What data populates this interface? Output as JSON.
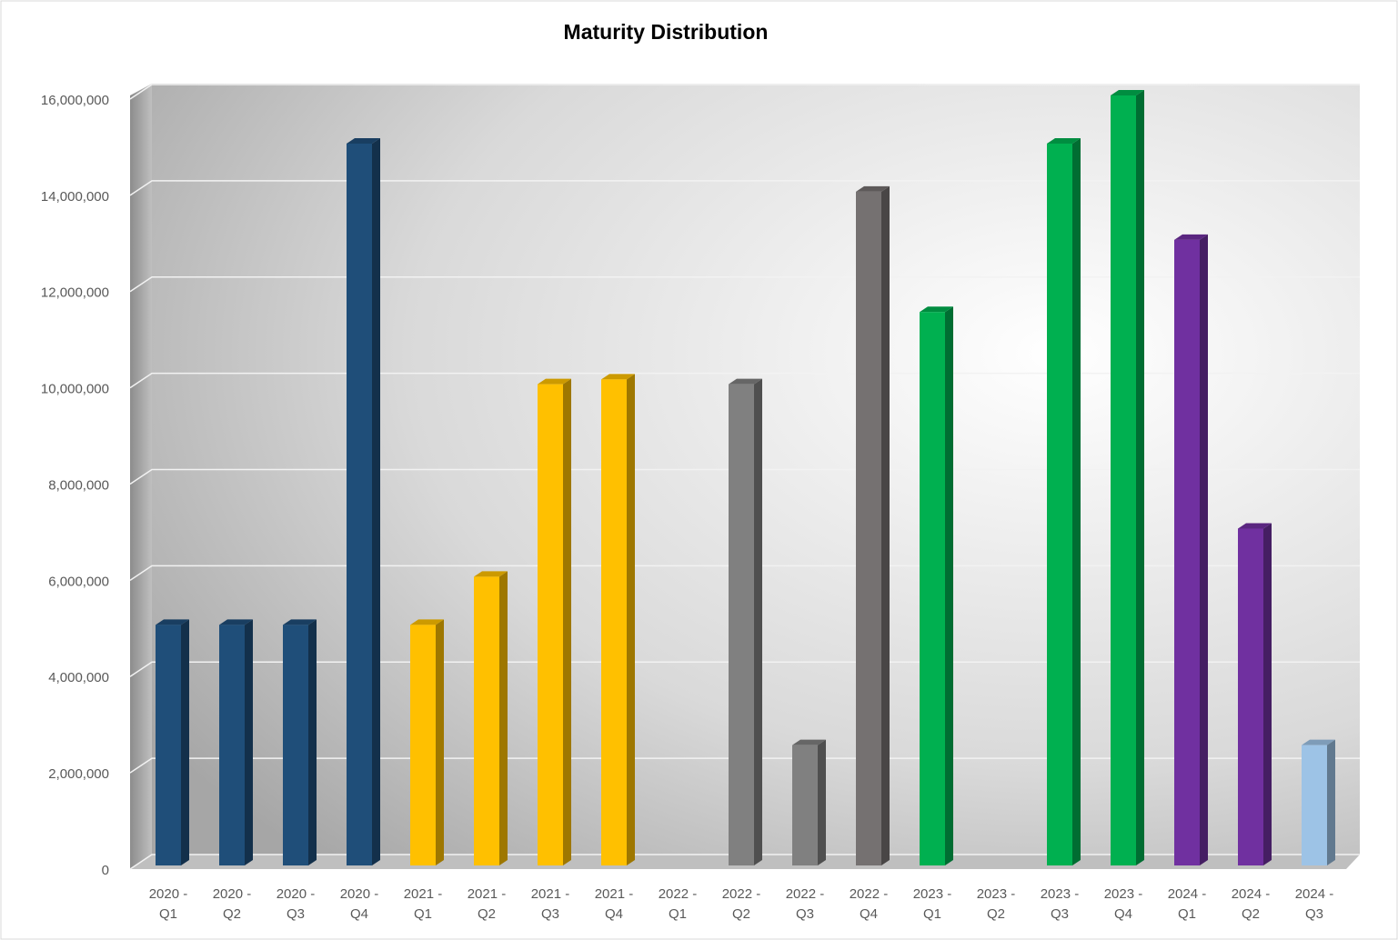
{
  "chart_data": {
    "type": "bar",
    "title": "Maturity Distribution",
    "categories": [
      "2020 - Q1",
      "2020 - Q2",
      "2020 - Q3",
      "2020 - Q4",
      "2021 - Q1",
      "2021 - Q2",
      "2021 - Q3",
      "2021 - Q4",
      "2022 - Q1",
      "2022 - Q2",
      "2022 - Q3",
      "2022 - Q4",
      "2023 - Q1",
      "2023 - Q2",
      "2023 - Q3",
      "2023 - Q4",
      "2024 - Q1",
      "2024 - Q2",
      "2024 - Q3"
    ],
    "values": [
      5000000,
      5000000,
      5000000,
      15000000,
      5000000,
      6000000,
      10000000,
      10100000,
      null,
      10000000,
      2500000,
      14000000,
      11500000,
      null,
      15000000,
      16000000,
      13000000,
      7000000,
      2500000
    ],
    "colors": [
      "#1f4e79",
      "#1f4e79",
      "#1f4e79",
      "#1f4e79",
      "#ffc000",
      "#ffc000",
      "#ffc000",
      "#ffc000",
      "#808080",
      "#808080",
      "#808080",
      "#757171",
      "#00b050",
      "#00b050",
      "#00b050",
      "#00b050",
      "#7030a0",
      "#7030a0",
      "#9dc3e6"
    ],
    "ylim": [
      0,
      16000000
    ],
    "yticks": [
      0,
      {
        "value": 2000000,
        "label": "2,000,000"
      },
      {
        "value": 4000000,
        "label": "4,000,000"
      },
      {
        "value": 6000000,
        "label": "6,000,000"
      },
      {
        "value": 8000000,
        "label": "8,000,000"
      },
      {
        "value": 10000000,
        "label": "10,000,000"
      },
      {
        "value": 12000000,
        "label": "12,000,000"
      },
      {
        "value": 14000000,
        "label": "14,000,000"
      },
      {
        "value": 16000000,
        "label": "16,000,000"
      }
    ],
    "grid": true
  }
}
